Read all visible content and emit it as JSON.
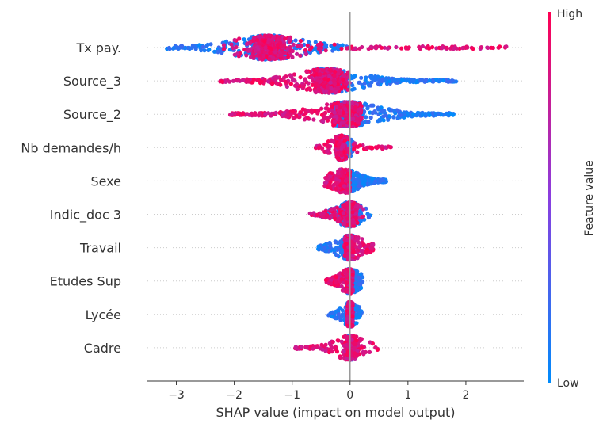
{
  "chart_data": {
    "type": "scatter",
    "subtype": "shap-beeswarm",
    "xlabel": "SHAP value (impact on model output)",
    "xlim": [
      -3.5,
      3.0
    ],
    "xticks": [
      -3,
      -2,
      -1,
      0,
      1,
      2
    ],
    "xtick_labels": [
      "−3",
      "−2",
      "−1",
      "0",
      "1",
      "2"
    ],
    "features": [
      {
        "name": "Tx pay.",
        "low_range": [
          -3.2,
          0.0
        ],
        "high_range": [
          -2.2,
          2.7
        ],
        "center": -1.4,
        "spread": 1.0
      },
      {
        "name": "Source_3",
        "low_range": [
          -0.6,
          1.85
        ],
        "high_range": [
          -2.25,
          0.0
        ],
        "center": -0.4,
        "spread": 0.9
      },
      {
        "name": "Source_2",
        "low_range": [
          -0.3,
          1.8
        ],
        "high_range": [
          -2.1,
          0.2
        ],
        "center": -0.05,
        "spread": 0.9
      },
      {
        "name": "Nb demandes/h",
        "low_range": [
          -0.25,
          0.05
        ],
        "high_range": [
          -0.6,
          0.72
        ],
        "center": -0.15,
        "spread": 0.3
      },
      {
        "name": "Sexe",
        "low_range": [
          0.0,
          0.63
        ],
        "high_range": [
          -0.45,
          0.0
        ],
        "center": -0.1,
        "spread": 0.4
      },
      {
        "name": "Indic_doc 3",
        "low_range": [
          -0.5,
          0.35
        ],
        "high_range": [
          -0.7,
          0.25
        ],
        "center": 0.0,
        "spread": 0.4
      },
      {
        "name": "Travail",
        "low_range": [
          -0.55,
          0.05
        ],
        "high_range": [
          -0.1,
          0.4
        ],
        "center": 0.0,
        "spread": 0.4
      },
      {
        "name": "Etudes Sup",
        "low_range": [
          -0.05,
          0.22
        ],
        "high_range": [
          -0.42,
          0.05
        ],
        "center": 0.0,
        "spread": 0.3
      },
      {
        "name": "Lycée",
        "low_range": [
          -0.38,
          0.22
        ],
        "high_range": [
          -0.05,
          0.05
        ],
        "center": 0.0,
        "spread": 0.25
      },
      {
        "name": "Cadre",
        "low_range": [
          -0.05,
          0.05
        ],
        "high_range": [
          -0.95,
          0.52
        ],
        "center": 0.0,
        "spread": 0.45
      }
    ],
    "colorbar": {
      "title": "Feature value",
      "high_label": "High",
      "low_label": "Low",
      "low_color": "#008bfb",
      "high_color": "#ff0052",
      "mid_color": "#a30ac2"
    },
    "grid": false
  }
}
